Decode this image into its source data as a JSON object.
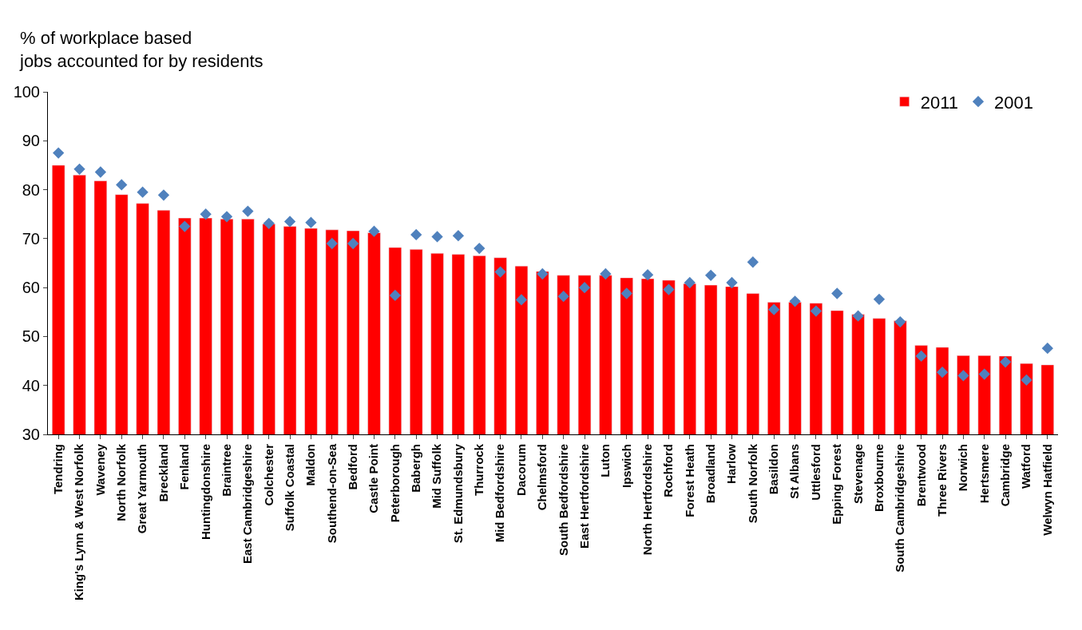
{
  "chart_data": {
    "type": "bar",
    "ylabel": "% of workplace based\njobs accounted for by residents",
    "categories": [
      "Tendring",
      "King's Lynn & West Norfolk",
      "Waveney",
      "North Norfolk",
      "Great Yarmouth",
      "Breckland",
      "Fenland",
      "Huntingdonshire",
      "Braintree",
      "East Cambridgeshire",
      "Colchester",
      "Suffolk Coastal",
      "Maldon",
      "Southend-on-Sea",
      "Bedford",
      "Castle Point",
      "Peterborough",
      "Babergh",
      "Mid Suffolk",
      "St. Edmundsbury",
      "Thurrock",
      "Mid Bedfordshire",
      "Dacorum",
      "Chelmsford",
      "South Bedfordshire",
      "East Hertfordshire",
      "Luton",
      "Ipswich",
      "North Hertfordshire",
      "Rochford",
      "Forest Heath",
      "Broadland",
      "Harlow",
      "South Norfolk",
      "Basildon",
      "St Albans",
      "Uttlesford",
      "Epping Forest",
      "Stevenage",
      "Broxbourne",
      "South Cambridgeshire",
      "Brentwood",
      "Three Rivers",
      "Norwich",
      "Hertsmere",
      "Cambridge",
      "Watford",
      "Welwyn Hatfield"
    ],
    "series": [
      {
        "name": "2011",
        "color": "#ff0000",
        "values": [
          85,
          83,
          81.8,
          79,
          77.2,
          75.8,
          74.2,
          74.2,
          74,
          74,
          73,
          72.5,
          72.1,
          71.8,
          71.6,
          71.2,
          68.2,
          67.8,
          67,
          66.8,
          66.5,
          66.1,
          64.4,
          63.3,
          62.5,
          62.5,
          62.5,
          62,
          61.8,
          61.5,
          60.8,
          60.5,
          60.2,
          58.8,
          57,
          57,
          56.8,
          55.3,
          54.5,
          53.7,
          53.2,
          48.2,
          47.8,
          46.1,
          46.1,
          46,
          44.5,
          44.2
        ]
      },
      {
        "name": "2001",
        "type": "scatter",
        "color": "#4f81bd",
        "marker": "diamond",
        "values": [
          87.5,
          84.2,
          83.6,
          81,
          79.5,
          78.9,
          72.5,
          75,
          74.5,
          75.6,
          73.1,
          73.5,
          73.3,
          69,
          69,
          71.5,
          58.4,
          70.8,
          70.4,
          70.6,
          68,
          63.2,
          57.5,
          62.8,
          58.2,
          60,
          62.8,
          58.8,
          62.6,
          59.6,
          61,
          62.5,
          61,
          65.2,
          55.5,
          57.2,
          55.2,
          58.8,
          54.2,
          57.6,
          53,
          46,
          42.7,
          42,
          42.3,
          44.8,
          41.1,
          47.6
        ]
      }
    ],
    "ylim": [
      30,
      100
    ],
    "yticks": [
      30,
      40,
      50,
      60,
      70,
      80,
      90,
      100
    ],
    "legend": "top right"
  }
}
